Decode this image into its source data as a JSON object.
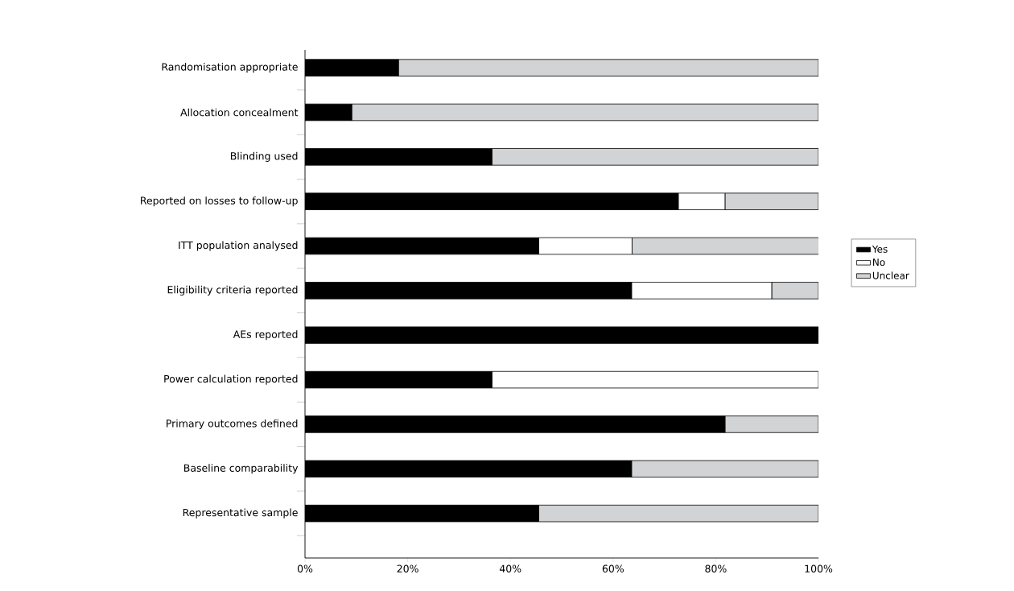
{
  "chart_data": {
    "type": "bar",
    "orientation": "horizontal",
    "stacked": true,
    "categories": [
      "Randomisation appropriate",
      "Allocation concealment",
      "Blinding used",
      "Reported on losses to follow-up",
      "ITT population analysed",
      "Eligibility criteria reported",
      "AEs reported",
      "Power calculation reported",
      "Primary outcomes defined",
      "Baseline comparability",
      "Representative sample"
    ],
    "series": [
      {
        "name": "Yes",
        "color": "#000000",
        "values": [
          18.2,
          9.1,
          36.4,
          72.7,
          45.5,
          63.6,
          100,
          36.4,
          81.8,
          63.6,
          45.5
        ]
      },
      {
        "name": "No",
        "color": "#ffffff",
        "values": [
          0,
          0,
          0,
          9.1,
          18.2,
          27.3,
          0,
          63.6,
          0,
          0,
          0
        ]
      },
      {
        "name": "Unclear",
        "color": "#d2d3d5",
        "values": [
          81.8,
          90.9,
          63.6,
          18.2,
          36.4,
          9.1,
          0,
          0,
          18.2,
          36.4,
          54.5
        ]
      }
    ],
    "xlim": [
      0,
      100
    ],
    "xticks": [
      {
        "value": 0,
        "label": "0%"
      },
      {
        "value": 20,
        "label": "20%"
      },
      {
        "value": 40,
        "label": "40%"
      },
      {
        "value": 60,
        "label": "60%"
      },
      {
        "value": 80,
        "label": "80%"
      },
      {
        "value": 100,
        "label": "100%"
      }
    ],
    "legend": "right",
    "grid": false
  }
}
